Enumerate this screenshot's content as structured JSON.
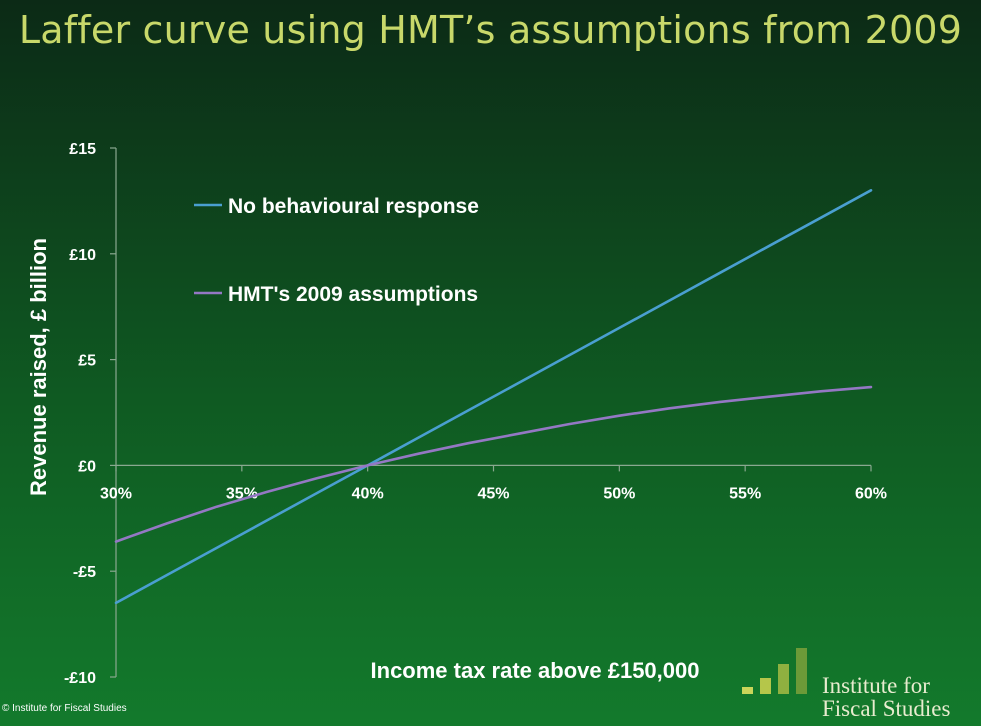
{
  "title": "Laffer curve using HMT’s assumptions from 2009",
  "copyright": "© Institute for Fiscal Studies",
  "logo": {
    "line1": "Institute for",
    "line2": "Fiscal Studies"
  },
  "colors": {
    "series_no_response": "#4a9fd0",
    "series_hmt": "#9478c4",
    "title": "#c8d86a",
    "logo_bars": [
      "#c9d55a",
      "#b5c64a",
      "#8fb040",
      "#6c9a38"
    ]
  },
  "chart_data": {
    "type": "line",
    "title": "Laffer curve using HMT’s assumptions from 2009",
    "xlabel": "Income tax rate above £150,000",
    "ylabel": "Revenue raised, £ billion",
    "x": [
      30,
      32,
      34,
      36,
      38,
      40,
      42,
      44,
      46,
      48,
      50,
      52,
      54,
      56,
      58,
      60
    ],
    "xlim": [
      30,
      60
    ],
    "ylim": [
      -10,
      15
    ],
    "x_ticks": [
      30,
      35,
      40,
      45,
      50,
      55,
      60
    ],
    "x_tick_labels": [
      "30%",
      "35%",
      "40%",
      "45%",
      "50%",
      "55%",
      "60%"
    ],
    "y_ticks": [
      15,
      10,
      5,
      0,
      -5,
      -10
    ],
    "y_tick_labels": [
      "£15",
      "£10",
      "£5",
      "£0",
      "-£5",
      "-£10"
    ],
    "legend_placement": "top-left",
    "grid": false,
    "series": [
      {
        "name": "No behavioural response",
        "color": "#4a9fd0",
        "values": [
          -6.5,
          -5.2,
          -3.9,
          -2.6,
          -1.3,
          0.0,
          1.3,
          2.6,
          3.9,
          5.2,
          6.5,
          7.8,
          9.1,
          10.4,
          11.7,
          13.0
        ]
      },
      {
        "name": "HMT's 2009 assumptions",
        "color": "#9478c4",
        "values": [
          -3.6,
          -2.75,
          -1.95,
          -1.25,
          -0.6,
          0.0,
          0.55,
          1.05,
          1.5,
          1.95,
          2.35,
          2.7,
          3.0,
          3.25,
          3.5,
          3.7
        ]
      }
    ]
  }
}
